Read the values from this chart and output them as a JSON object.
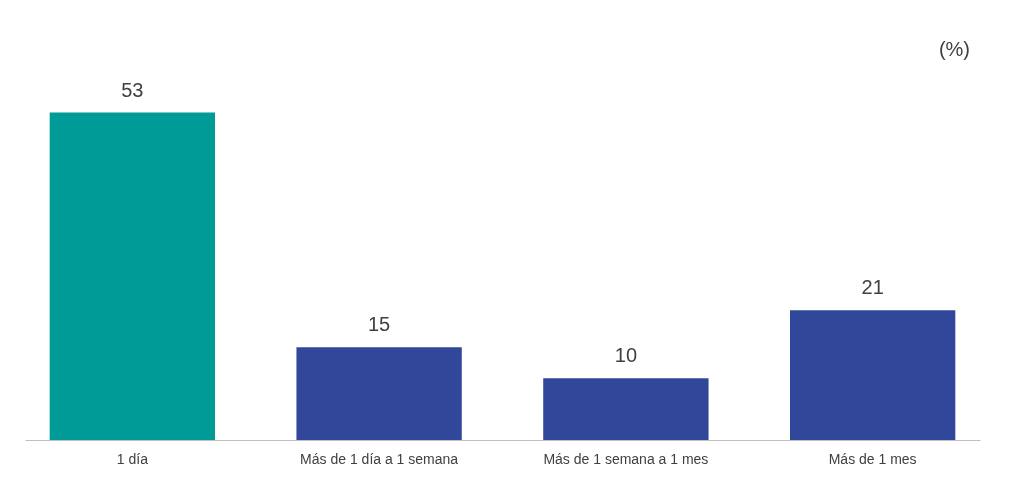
{
  "chart_data": {
    "type": "bar",
    "categories": [
      "1 día",
      "Más de 1 día a 1 semana",
      "Más de 1 semana a 1 mes",
      "Más de 1 mes"
    ],
    "values": [
      53,
      15,
      10,
      21
    ],
    "colors": [
      "#009b96",
      "#30479a",
      "#30479a",
      "#30479a"
    ],
    "data_labels": true,
    "annotations": [
      "(%)"
    ]
  }
}
